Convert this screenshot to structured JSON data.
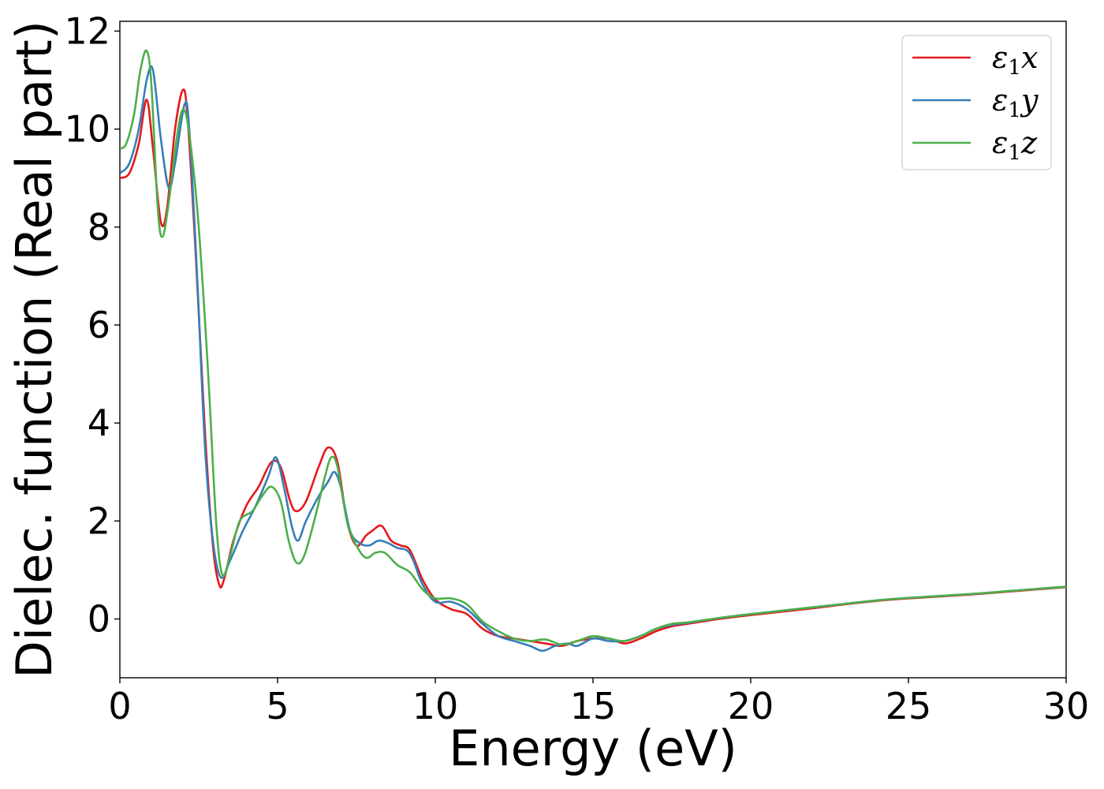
{
  "chart_data": {
    "type": "line",
    "xlabel": "Energy (eV)",
    "ylabel": "Dielec. function (Real part)",
    "xlim": [
      0,
      30
    ],
    "ylim": [
      -1.2,
      12.2
    ],
    "xticks": [
      0,
      5,
      10,
      15,
      20,
      25,
      30
    ],
    "yticks": [
      0,
      2,
      4,
      6,
      8,
      10,
      12
    ],
    "grid": false,
    "legend_position": "top-right",
    "series": [
      {
        "name": "ε1x",
        "legend": {
          "greek": "ε",
          "sub": "1",
          "var": "x"
        },
        "color": "#e41a1c",
        "points": [
          [
            0,
            9.0
          ],
          [
            0.3,
            9.1
          ],
          [
            0.6,
            9.7
          ],
          [
            0.85,
            10.6
          ],
          [
            1.05,
            9.6
          ],
          [
            1.3,
            8.1
          ],
          [
            1.5,
            8.4
          ],
          [
            1.75,
            10.0
          ],
          [
            2.0,
            10.8
          ],
          [
            2.15,
            10.2
          ],
          [
            2.4,
            7.5
          ],
          [
            2.7,
            3.8
          ],
          [
            2.95,
            1.5
          ],
          [
            3.15,
            0.7
          ],
          [
            3.3,
            0.8
          ],
          [
            3.6,
            1.6
          ],
          [
            4.0,
            2.3
          ],
          [
            4.4,
            2.7
          ],
          [
            4.8,
            3.2
          ],
          [
            5.1,
            3.1
          ],
          [
            5.4,
            2.4
          ],
          [
            5.6,
            2.2
          ],
          [
            5.9,
            2.4
          ],
          [
            6.3,
            3.1
          ],
          [
            6.6,
            3.5
          ],
          [
            6.9,
            3.2
          ],
          [
            7.2,
            2.0
          ],
          [
            7.5,
            1.5
          ],
          [
            7.8,
            1.7
          ],
          [
            8.0,
            1.8
          ],
          [
            8.3,
            1.9
          ],
          [
            8.6,
            1.6
          ],
          [
            8.9,
            1.5
          ],
          [
            9.2,
            1.4
          ],
          [
            9.6,
            0.8
          ],
          [
            10.0,
            0.4
          ],
          [
            10.5,
            0.2
          ],
          [
            11.0,
            0.1
          ],
          [
            11.5,
            -0.2
          ],
          [
            12.0,
            -0.35
          ],
          [
            12.5,
            -0.4
          ],
          [
            13.0,
            -0.45
          ],
          [
            13.5,
            -0.5
          ],
          [
            14.0,
            -0.55
          ],
          [
            14.5,
            -0.45
          ],
          [
            15.0,
            -0.4
          ],
          [
            15.5,
            -0.4
          ],
          [
            16.0,
            -0.5
          ],
          [
            16.5,
            -0.4
          ],
          [
            17.0,
            -0.25
          ],
          [
            17.5,
            -0.15
          ],
          [
            18.0,
            -0.1
          ],
          [
            19.0,
            0.0
          ],
          [
            20.0,
            0.08
          ],
          [
            21.0,
            0.15
          ],
          [
            22.0,
            0.22
          ],
          [
            23.0,
            0.3
          ],
          [
            24.0,
            0.37
          ],
          [
            25.0,
            0.42
          ],
          [
            26.0,
            0.46
          ],
          [
            27.0,
            0.5
          ],
          [
            28.0,
            0.55
          ],
          [
            29.0,
            0.6
          ],
          [
            30.0,
            0.65
          ]
        ]
      },
      {
        "name": "ε1y",
        "legend": {
          "greek": "ε",
          "sub": "1",
          "var": "y"
        },
        "color": "#377eb8",
        "points": [
          [
            0,
            9.1
          ],
          [
            0.3,
            9.3
          ],
          [
            0.6,
            10.0
          ],
          [
            0.85,
            11.0
          ],
          [
            1.05,
            11.2
          ],
          [
            1.3,
            9.8
          ],
          [
            1.55,
            8.8
          ],
          [
            1.75,
            9.3
          ],
          [
            2.05,
            10.5
          ],
          [
            2.2,
            10.0
          ],
          [
            2.45,
            7.0
          ],
          [
            2.7,
            3.5
          ],
          [
            2.95,
            1.6
          ],
          [
            3.2,
            0.85
          ],
          [
            3.5,
            1.2
          ],
          [
            3.9,
            1.8
          ],
          [
            4.3,
            2.3
          ],
          [
            4.7,
            2.9
          ],
          [
            4.95,
            3.3
          ],
          [
            5.2,
            2.7
          ],
          [
            5.45,
            1.9
          ],
          [
            5.65,
            1.6
          ],
          [
            5.9,
            2.0
          ],
          [
            6.3,
            2.5
          ],
          [
            6.6,
            2.8
          ],
          [
            6.8,
            3.0
          ],
          [
            7.0,
            2.7
          ],
          [
            7.3,
            1.8
          ],
          [
            7.6,
            1.55
          ],
          [
            7.9,
            1.5
          ],
          [
            8.2,
            1.6
          ],
          [
            8.5,
            1.55
          ],
          [
            8.8,
            1.45
          ],
          [
            9.1,
            1.4
          ],
          [
            9.3,
            1.2
          ],
          [
            9.6,
            0.7
          ],
          [
            10.0,
            0.35
          ],
          [
            10.5,
            0.35
          ],
          [
            11.0,
            0.2
          ],
          [
            11.5,
            -0.1
          ],
          [
            12.0,
            -0.35
          ],
          [
            12.5,
            -0.45
          ],
          [
            13.0,
            -0.55
          ],
          [
            13.4,
            -0.65
          ],
          [
            13.8,
            -0.55
          ],
          [
            14.2,
            -0.5
          ],
          [
            14.5,
            -0.55
          ],
          [
            15.0,
            -0.4
          ],
          [
            15.5,
            -0.45
          ],
          [
            16.0,
            -0.45
          ],
          [
            16.5,
            -0.35
          ],
          [
            17.0,
            -0.2
          ],
          [
            17.5,
            -0.12
          ],
          [
            18.0,
            -0.08
          ],
          [
            19.0,
            0.02
          ],
          [
            20.0,
            0.1
          ],
          [
            21.0,
            0.17
          ],
          [
            22.0,
            0.24
          ],
          [
            23.0,
            0.31
          ],
          [
            24.0,
            0.38
          ],
          [
            25.0,
            0.43
          ],
          [
            26.0,
            0.47
          ],
          [
            27.0,
            0.51
          ],
          [
            28.0,
            0.56
          ],
          [
            29.0,
            0.61
          ],
          [
            30.0,
            0.66
          ]
        ]
      },
      {
        "name": "ε1z",
        "legend": {
          "greek": "ε",
          "sub": "1",
          "var": "z"
        },
        "color": "#4daf4a",
        "points": [
          [
            0,
            9.6
          ],
          [
            0.2,
            9.7
          ],
          [
            0.45,
            10.3
          ],
          [
            0.65,
            11.2
          ],
          [
            0.85,
            11.6
          ],
          [
            1.0,
            10.9
          ],
          [
            1.2,
            8.4
          ],
          [
            1.35,
            7.8
          ],
          [
            1.55,
            8.5
          ],
          [
            1.8,
            9.8
          ],
          [
            2.0,
            10.4
          ],
          [
            2.2,
            9.9
          ],
          [
            2.5,
            8.0
          ],
          [
            2.8,
            5.0
          ],
          [
            3.05,
            2.0
          ],
          [
            3.25,
            0.9
          ],
          [
            3.5,
            1.3
          ],
          [
            3.8,
            2.0
          ],
          [
            4.2,
            2.2
          ],
          [
            4.5,
            2.5
          ],
          [
            4.8,
            2.7
          ],
          [
            5.1,
            2.4
          ],
          [
            5.35,
            1.6
          ],
          [
            5.6,
            1.15
          ],
          [
            5.85,
            1.3
          ],
          [
            6.2,
            2.1
          ],
          [
            6.5,
            2.9
          ],
          [
            6.7,
            3.3
          ],
          [
            6.9,
            3.1
          ],
          [
            7.2,
            2.0
          ],
          [
            7.5,
            1.5
          ],
          [
            7.8,
            1.25
          ],
          [
            8.1,
            1.35
          ],
          [
            8.4,
            1.35
          ],
          [
            8.8,
            1.1
          ],
          [
            9.2,
            0.95
          ],
          [
            9.6,
            0.6
          ],
          [
            10.0,
            0.42
          ],
          [
            10.5,
            0.42
          ],
          [
            11.0,
            0.3
          ],
          [
            11.5,
            -0.05
          ],
          [
            12.0,
            -0.25
          ],
          [
            12.5,
            -0.4
          ],
          [
            13.0,
            -0.45
          ],
          [
            13.5,
            -0.42
          ],
          [
            14.0,
            -0.52
          ],
          [
            14.5,
            -0.45
          ],
          [
            15.0,
            -0.35
          ],
          [
            15.5,
            -0.4
          ],
          [
            16.0,
            -0.45
          ],
          [
            16.5,
            -0.35
          ],
          [
            17.0,
            -0.2
          ],
          [
            17.5,
            -0.1
          ],
          [
            18.0,
            -0.07
          ],
          [
            19.0,
            0.02
          ],
          [
            20.0,
            0.1
          ],
          [
            21.0,
            0.17
          ],
          [
            22.0,
            0.24
          ],
          [
            23.0,
            0.31
          ],
          [
            24.0,
            0.38
          ],
          [
            25.0,
            0.43
          ],
          [
            26.0,
            0.47
          ],
          [
            27.0,
            0.51
          ],
          [
            28.0,
            0.56
          ],
          [
            29.0,
            0.61
          ],
          [
            30.0,
            0.66
          ]
        ]
      }
    ]
  }
}
